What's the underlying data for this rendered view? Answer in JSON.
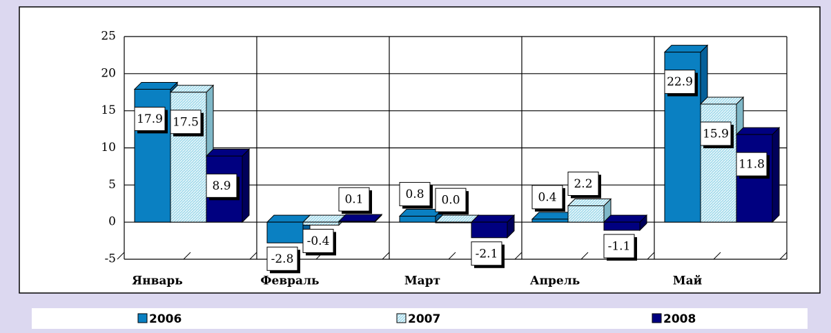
{
  "chart_data": {
    "type": "bar3d",
    "categories": [
      "Январь",
      "Февраль",
      "Март",
      "Апрель",
      "Май"
    ],
    "series": [
      {
        "name": "2006",
        "color": "#0a80c2",
        "values": [
          17.9,
          -2.8,
          0.8,
          0.4,
          22.9
        ],
        "value_labels": [
          "17.9",
          "-2.8",
          "0.8",
          "0.4",
          "22.9"
        ]
      },
      {
        "name": "2007",
        "color": "#a6dcec",
        "values": [
          17.5,
          -0.4,
          0.0,
          2.2,
          15.9
        ],
        "value_labels": [
          "17.5",
          "-0.4",
          "0.0",
          "2.2",
          "15.9"
        ]
      },
      {
        "name": "2008",
        "color": "#000080",
        "values": [
          8.9,
          0.1,
          -2.1,
          -1.1,
          11.8
        ],
        "value_labels": [
          "8.9",
          "0.1",
          "-2.1",
          "-1.1",
          "11.8"
        ]
      }
    ],
    "ylim": [
      -5,
      25
    ],
    "yticks": [
      -5,
      0,
      5,
      10,
      15,
      20,
      25
    ],
    "grid": true,
    "legend": "bottom"
  }
}
